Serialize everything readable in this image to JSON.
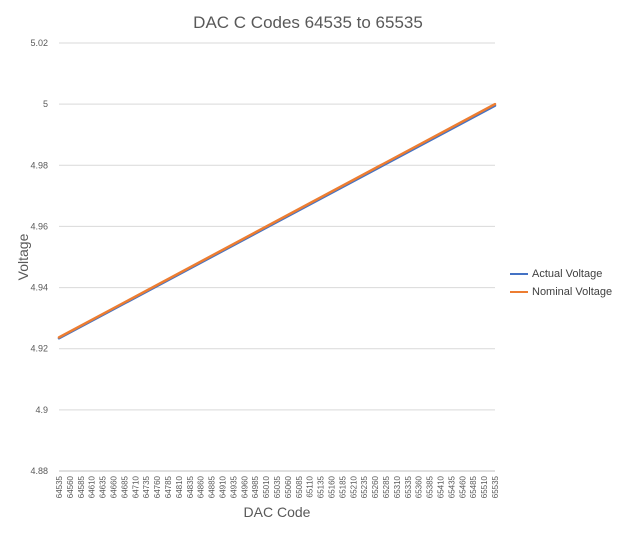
{
  "chart_data": {
    "type": "line",
    "title": "DAC C Codes 64535 to 65535",
    "xlabel": "DAC Code",
    "ylabel": "Voltage",
    "ylim": [
      4.88,
      5.02
    ],
    "yticks": [
      4.88,
      4.9,
      4.92,
      4.94,
      4.96,
      4.98,
      5,
      5.02
    ],
    "ytick_labels": [
      "4.88",
      "4.9",
      "4.92",
      "4.94",
      "4.96",
      "4.98",
      "5",
      "5.02"
    ],
    "x": [
      64535,
      64560,
      64585,
      64610,
      64635,
      64660,
      64685,
      64710,
      64735,
      64760,
      64785,
      64810,
      64835,
      64860,
      64885,
      64910,
      64935,
      64960,
      64985,
      65010,
      65035,
      65060,
      65085,
      65110,
      65135,
      65160,
      65185,
      65210,
      65235,
      65260,
      65285,
      65310,
      65335,
      65360,
      65385,
      65410,
      65435,
      65460,
      65485,
      65510,
      65535
    ],
    "grid": true,
    "legend_position": "right",
    "series": [
      {
        "name": "Actual Voltage",
        "color": "#4472C4",
        "start": 4.9234,
        "end": 4.9995
      },
      {
        "name": "Nominal Voltage",
        "color": "#ED7D31",
        "start": 4.9237,
        "end": 5.0
      }
    ]
  }
}
